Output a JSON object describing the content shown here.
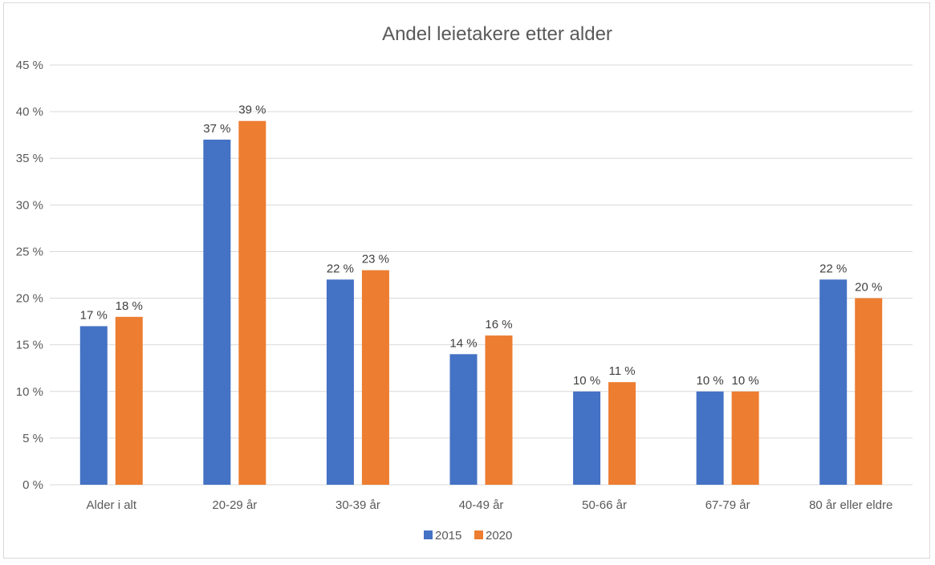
{
  "chart_data": {
    "type": "bar",
    "title": "Andel leietakere etter alder",
    "xlabel": "",
    "ylabel": "",
    "categories": [
      "Alder i alt",
      "20-29 år",
      "30-39 år",
      "40-49 år",
      "50-66 år",
      "67-79 år",
      "80 år eller eldre"
    ],
    "series": [
      {
        "name": "2015",
        "color": "#4472c4",
        "values": [
          17,
          37,
          22,
          14,
          10,
          10,
          22
        ],
        "labels": [
          "17 %",
          "37 %",
          "22 %",
          "14 %",
          "10 %",
          "10 %",
          "22 %"
        ]
      },
      {
        "name": "2020",
        "color": "#ed7d31",
        "values": [
          18,
          39,
          23,
          16,
          11,
          10,
          20
        ],
        "labels": [
          "18 %",
          "39 %",
          "23 %",
          "16 %",
          "11 %",
          "10 %",
          "20 %"
        ]
      }
    ],
    "ylim": [
      0,
      45
    ],
    "yticks": [
      0,
      5,
      10,
      15,
      20,
      25,
      30,
      35,
      40,
      45
    ],
    "ytick_labels": [
      "0 %",
      "5 %",
      "10 %",
      "15 %",
      "20 %",
      "25 %",
      "30 %",
      "35 %",
      "40 %",
      "45 %"
    ],
    "grid": true,
    "legend_position": "bottom"
  }
}
